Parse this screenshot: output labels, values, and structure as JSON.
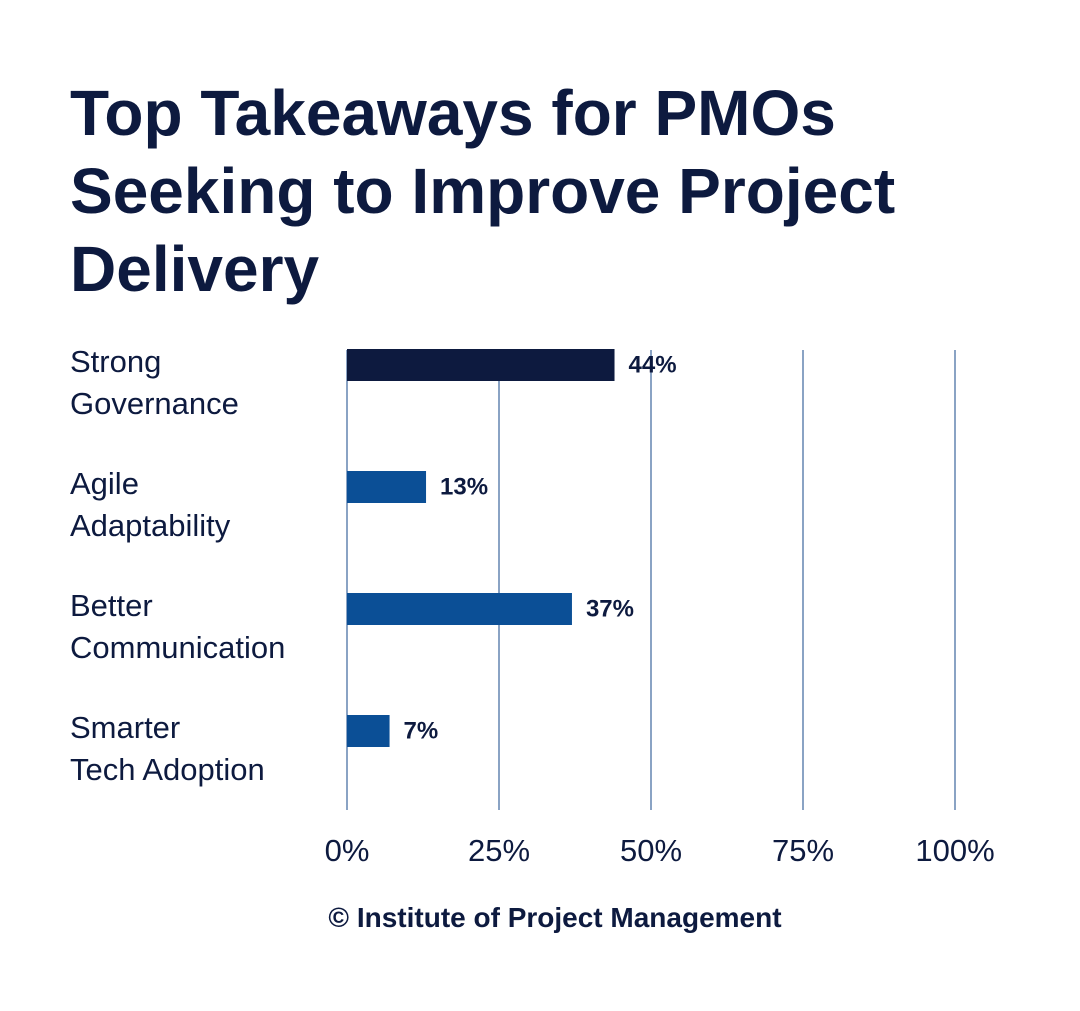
{
  "chart_data": {
    "type": "bar",
    "orientation": "horizontal",
    "title": "Top Takeaways for PMOs Seeking to Improve Project Delivery",
    "categories": [
      "Strong\nGovernance",
      "Agile\nAdaptability",
      "Better\nCommunication",
      "Smarter\nTech Adoption"
    ],
    "values": [
      44,
      13,
      37,
      7
    ],
    "value_labels": [
      "44%",
      "13%",
      "37%",
      "7%"
    ],
    "colors": [
      "#0d1a3f",
      "#0b4f96",
      "#0b4f96",
      "#0b4f96"
    ],
    "xlim": [
      0,
      100
    ],
    "xticks": [
      {
        "value": 0,
        "label": "0%"
      },
      {
        "value": 25,
        "label": "25%"
      },
      {
        "value": 50,
        "label": "50%"
      },
      {
        "value": 75,
        "label": "75%"
      },
      {
        "value": 100,
        "label": "100%"
      }
    ],
    "grid": true,
    "source": "© Institute of Project Management"
  }
}
